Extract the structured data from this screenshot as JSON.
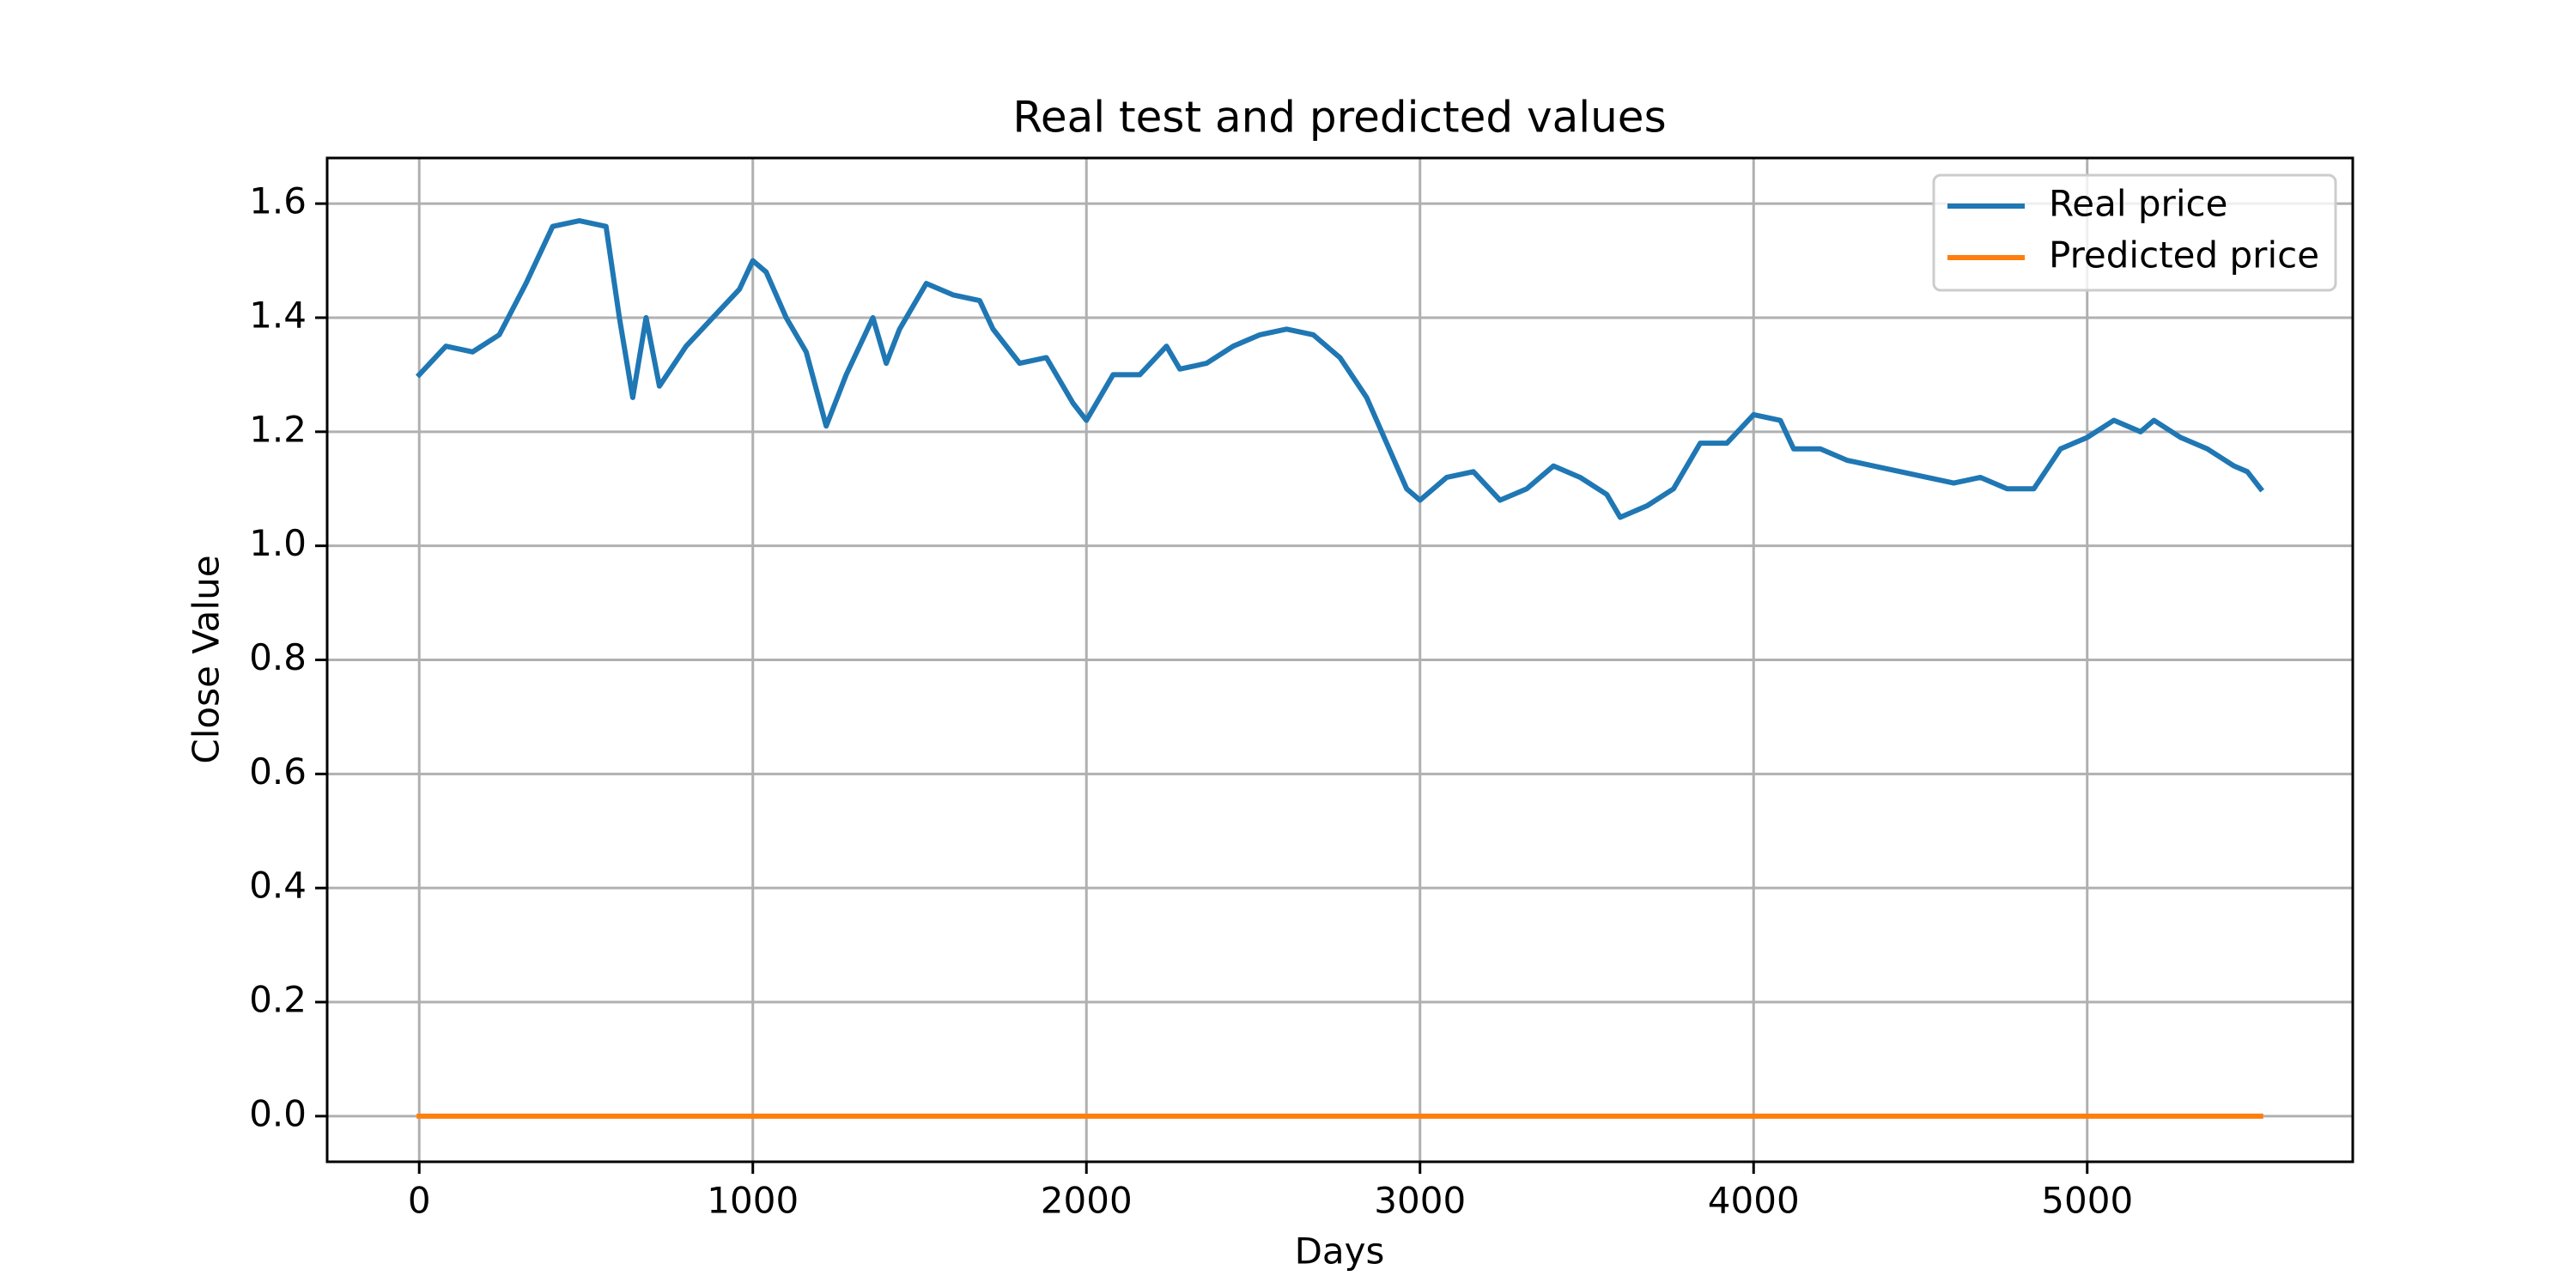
{
  "chart_data": {
    "type": "line",
    "title": "Real test and predicted values",
    "xlabel": "Days",
    "ylabel": "Close Value",
    "x": [
      0,
      80,
      160,
      240,
      320,
      400,
      480,
      560,
      600,
      640,
      680,
      720,
      800,
      880,
      960,
      1000,
      1040,
      1100,
      1160,
      1220,
      1280,
      1360,
      1400,
      1440,
      1520,
      1600,
      1680,
      1720,
      1800,
      1880,
      1960,
      2000,
      2080,
      2160,
      2240,
      2280,
      2360,
      2440,
      2520,
      2600,
      2680,
      2760,
      2840,
      2900,
      2960,
      3000,
      3080,
      3160,
      3240,
      3320,
      3400,
      3480,
      3560,
      3600,
      3680,
      3760,
      3840,
      3920,
      4000,
      4080,
      4120,
      4200,
      4280,
      4360,
      4440,
      4520,
      4600,
      4680,
      4760,
      4840,
      4920,
      5000,
      5080,
      5160,
      5200,
      5280,
      5360,
      5440,
      5480,
      5520
    ],
    "series": [
      {
        "name": "Real price",
        "color": "#1f77b4",
        "values": [
          1.3,
          1.35,
          1.34,
          1.37,
          1.46,
          1.56,
          1.57,
          1.56,
          1.4,
          1.26,
          1.4,
          1.28,
          1.35,
          1.4,
          1.45,
          1.5,
          1.48,
          1.4,
          1.34,
          1.21,
          1.3,
          1.4,
          1.32,
          1.38,
          1.46,
          1.44,
          1.43,
          1.38,
          1.32,
          1.33,
          1.25,
          1.22,
          1.3,
          1.3,
          1.35,
          1.31,
          1.32,
          1.35,
          1.37,
          1.38,
          1.37,
          1.33,
          1.26,
          1.18,
          1.1,
          1.08,
          1.12,
          1.13,
          1.08,
          1.1,
          1.14,
          1.12,
          1.09,
          1.05,
          1.07,
          1.1,
          1.18,
          1.18,
          1.23,
          1.22,
          1.17,
          1.17,
          1.15,
          1.14,
          1.13,
          1.12,
          1.11,
          1.12,
          1.1,
          1.1,
          1.17,
          1.19,
          1.22,
          1.2,
          1.22,
          1.19,
          1.17,
          1.14,
          1.13,
          1.1
        ]
      },
      {
        "name": "Predicted price",
        "color": "#ff7f0e",
        "values": [
          0,
          0,
          0,
          0,
          0,
          0,
          0,
          0,
          0,
          0,
          0,
          0,
          0,
          0,
          0,
          0,
          0,
          0,
          0,
          0,
          0,
          0,
          0,
          0,
          0,
          0,
          0,
          0,
          0,
          0,
          0,
          0,
          0,
          0,
          0,
          0,
          0,
          0,
          0,
          0,
          0,
          0,
          0,
          0,
          0,
          0,
          0,
          0,
          0,
          0,
          0,
          0,
          0,
          0,
          0,
          0,
          0,
          0,
          0,
          0,
          0,
          0,
          0,
          0,
          0,
          0,
          0,
          0,
          0,
          0,
          0,
          0,
          0,
          0,
          0,
          0,
          0,
          0,
          0,
          0
        ]
      }
    ],
    "xlim": [
      -276,
      5796
    ],
    "xticks": [
      0,
      1000,
      2000,
      3000,
      4000,
      5000
    ],
    "ylim": [
      -0.08,
      1.68
    ],
    "yticks": [
      {
        "value": 0,
        "label": "0.0"
      },
      0.2,
      0.4,
      0.6,
      0.8,
      {
        "value": 1,
        "label": "1.0"
      },
      1.2,
      1.4,
      1.6
    ],
    "grid": true,
    "legend": "upper right"
  }
}
